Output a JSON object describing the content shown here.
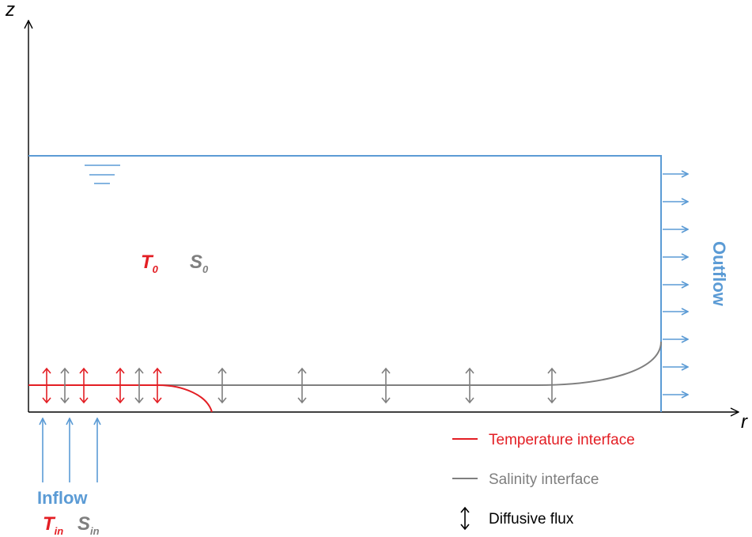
{
  "axes": {
    "z_label": "z",
    "r_label": "r"
  },
  "domain_labels": {
    "t0_main": "T",
    "t0_sub": "0",
    "s0_main": "S",
    "s0_sub": "0"
  },
  "inflow": {
    "label": "Inflow",
    "tin_main": "T",
    "tin_sub": "in",
    "sin_main": "S",
    "sin_sub": "in"
  },
  "outflow": {
    "label": "Outflow"
  },
  "legend": {
    "temperature": "Temperature interface",
    "salinity": "Salinity interface",
    "diffusive": "Diffusive flux"
  },
  "colors": {
    "blue": "#5b9bd5",
    "red": "#e31e24",
    "gray": "#7f7f7f",
    "black": "#000000"
  }
}
